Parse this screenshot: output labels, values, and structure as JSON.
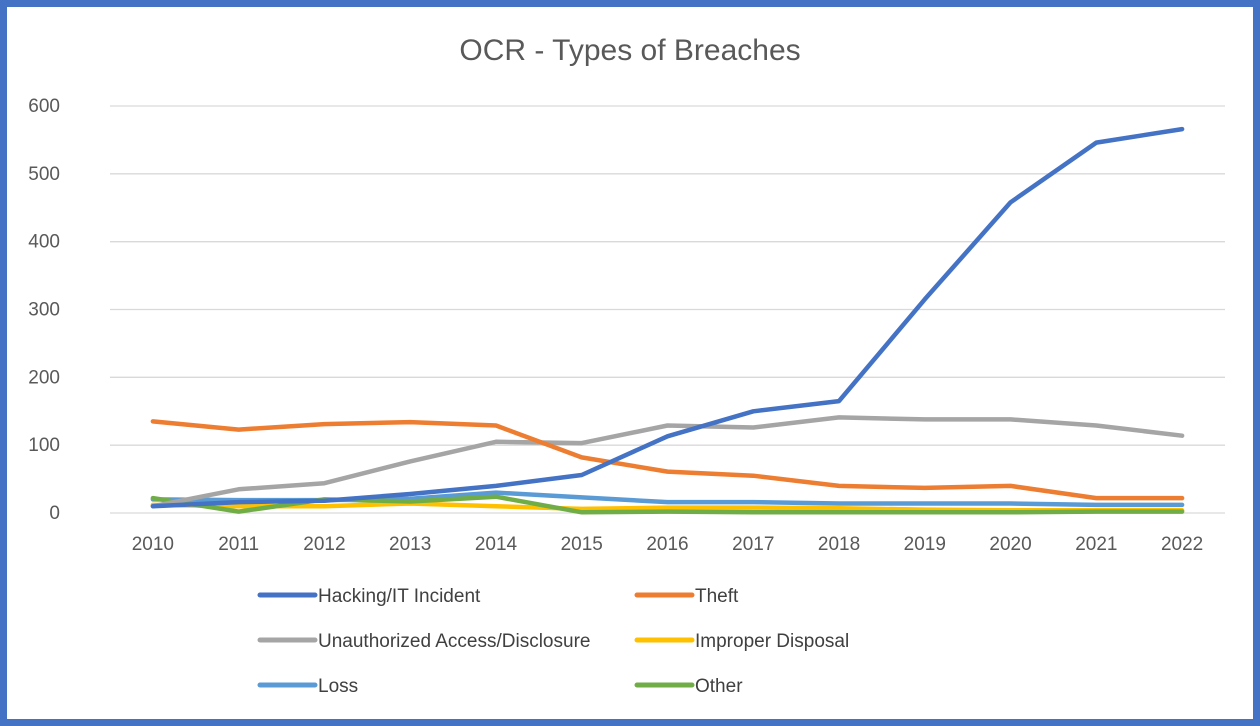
{
  "chart_data": {
    "type": "line",
    "title": "OCR - Types of Breaches",
    "xlabel": "",
    "ylabel": "",
    "x": [
      "2010",
      "2011",
      "2012",
      "2013",
      "2014",
      "2015",
      "2016",
      "2017",
      "2018",
      "2019",
      "2020",
      "2021",
      "2022"
    ],
    "ylim": [
      0,
      600
    ],
    "yticks": [
      0,
      100,
      200,
      300,
      400,
      500,
      600
    ],
    "grid": true,
    "legend_position": "bottom",
    "series": [
      {
        "name": "Hacking/IT Incident",
        "color": "#4472c4",
        "values": [
          10,
          16,
          18,
          28,
          40,
          56,
          113,
          150,
          165,
          315,
          458,
          546,
          566
        ]
      },
      {
        "name": "Theft",
        "color": "#ed7d31",
        "values": [
          135,
          123,
          131,
          134,
          129,
          82,
          61,
          55,
          40,
          37,
          40,
          22,
          22
        ]
      },
      {
        "name": "Unauthorized Access/Disclosure",
        "color": "#a5a5a5",
        "values": [
          10,
          35,
          44,
          76,
          105,
          103,
          129,
          126,
          141,
          138,
          138,
          129,
          114
        ]
      },
      {
        "name": "Improper Disposal",
        "color": "#ffc000",
        "values": [
          12,
          10,
          10,
          14,
          10,
          6,
          8,
          8,
          7,
          5,
          4,
          4,
          4
        ]
      },
      {
        "name": "Loss",
        "color": "#5b9bd5",
        "values": [
          20,
          19,
          19,
          21,
          30,
          23,
          16,
          16,
          14,
          14,
          14,
          12,
          12
        ]
      },
      {
        "name": "Other",
        "color": "#70ad47",
        "values": [
          22,
          2,
          20,
          17,
          24,
          1,
          2,
          1,
          1,
          1,
          1,
          2,
          2
        ]
      }
    ]
  }
}
